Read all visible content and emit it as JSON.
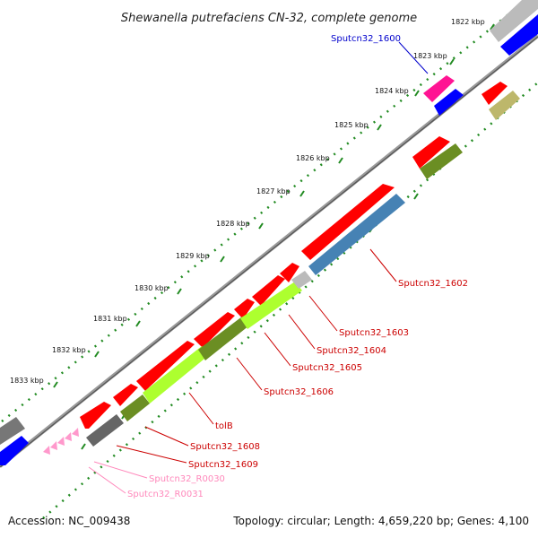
{
  "title": "Shewanella putrefaciens CN-32, complete genome",
  "accession_label": "Accession: NC_009438",
  "topology_label": "Topology: circular; Length: 4,659,220 bp; Genes: 4,100",
  "kbp_ticks": [
    "1822 kbp",
    "1823 kbp",
    "1824 kbp",
    "1825 kbp",
    "1826 kbp",
    "1827 kbp",
    "1828 kbp",
    "1829 kbp",
    "1830 kbp",
    "1831 kbp",
    "1832 kbp",
    "1833 kbp"
  ],
  "gene_labels": {
    "sputcn32_1600": "Sputcn32_1600",
    "sputcn32_1602": "Sputcn32_1602",
    "sputcn32_1603": "Sputcn32_1603",
    "sputcn32_1604": "Sputcn32_1604",
    "sputcn32_1605": "Sputcn32_1605",
    "sputcn32_1606": "Sputcn32_1606",
    "tolb": "tolB",
    "sputcn32_1608": "Sputcn32_1608",
    "sputcn32_1609": "Sputcn32_1609",
    "sputcn32_r0030": "Sputcn32_R0030",
    "sputcn32_r0031": "Sputcn32_R0031"
  },
  "colors": {
    "cds": "#ff0000",
    "cds_blue": "#0000ff",
    "label_red": "#cc0000",
    "label_blue": "#0000cc",
    "label_pink": "#ff88bb",
    "trna": "#ff99cc",
    "pink_gene": "#ff1493",
    "olive": "#6b8e23",
    "lime": "#adff2f",
    "steel": "#4682b4",
    "khaki": "#bdb76b",
    "gray": "#777777",
    "ticks": "#228b22"
  }
}
